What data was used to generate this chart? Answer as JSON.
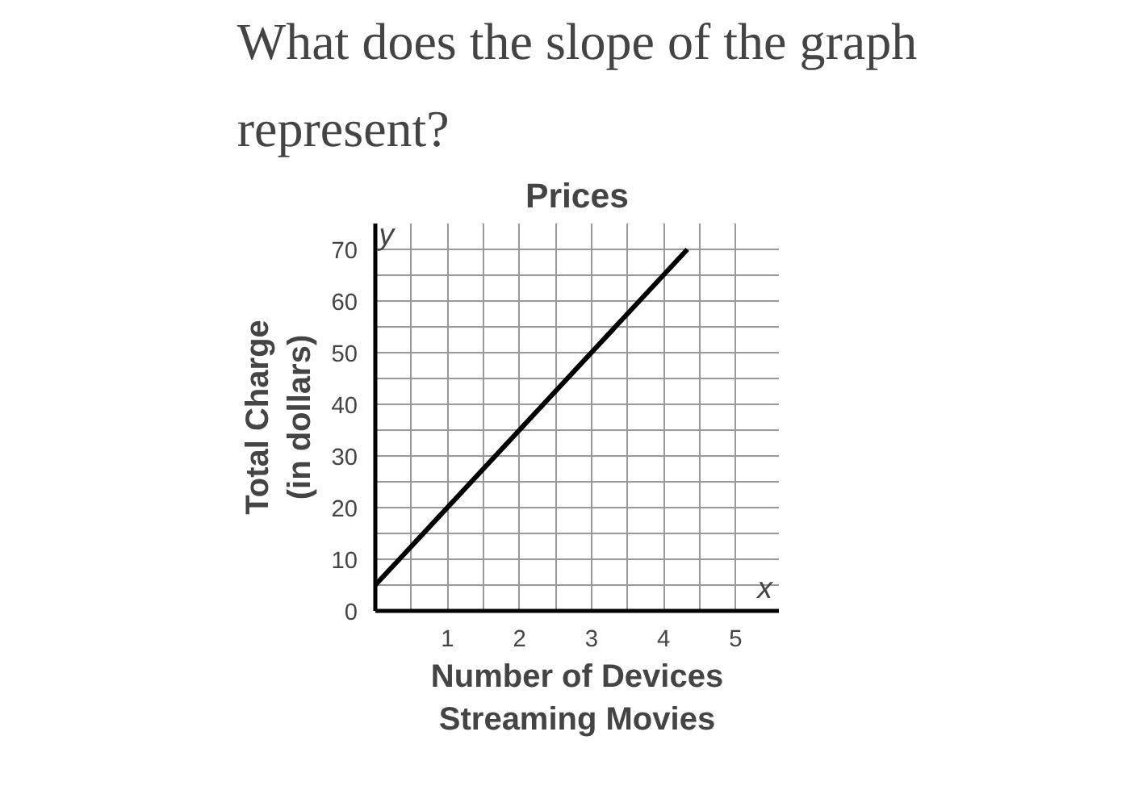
{
  "chart_data": {
    "type": "line",
    "title": "What does the slope of the graph represent?",
    "subtitle": "Prices",
    "xlabel": "Number of Devices\nStreaming Movies",
    "ylabel": "Total Charge\n(in dollars)",
    "x": [
      0,
      4.33
    ],
    "series": [
      {
        "color": "#000000",
        "values": [
          5,
          70
        ]
      }
    ],
    "xlim": [
      0,
      5.6
    ],
    "ylim": [
      0,
      75
    ],
    "xticks": [
      {
        "value": 0,
        "label": null
      },
      {
        "value": 0.5,
        "label": null
      },
      1,
      {
        "value": 1.5,
        "label": null
      },
      2,
      {
        "value": 2.5,
        "label": null
      },
      3,
      {
        "value": 3.5,
        "label": null
      },
      4,
      {
        "value": 4.5,
        "label": null
      },
      5
    ],
    "yticks": [
      0,
      {
        "value": 5,
        "label": null
      },
      10,
      {
        "value": 15,
        "label": null
      },
      20,
      {
        "value": 25,
        "label": null
      },
      30,
      {
        "value": 35,
        "label": null
      },
      40,
      {
        "value": 45,
        "label": null
      },
      50,
      {
        "value": 55,
        "label": null
      },
      60,
      {
        "value": 65,
        "label": null
      },
      70
    ],
    "grid": true,
    "marker": "none",
    "line_style": "solid",
    "annotations": [
      "x",
      "y"
    ]
  }
}
